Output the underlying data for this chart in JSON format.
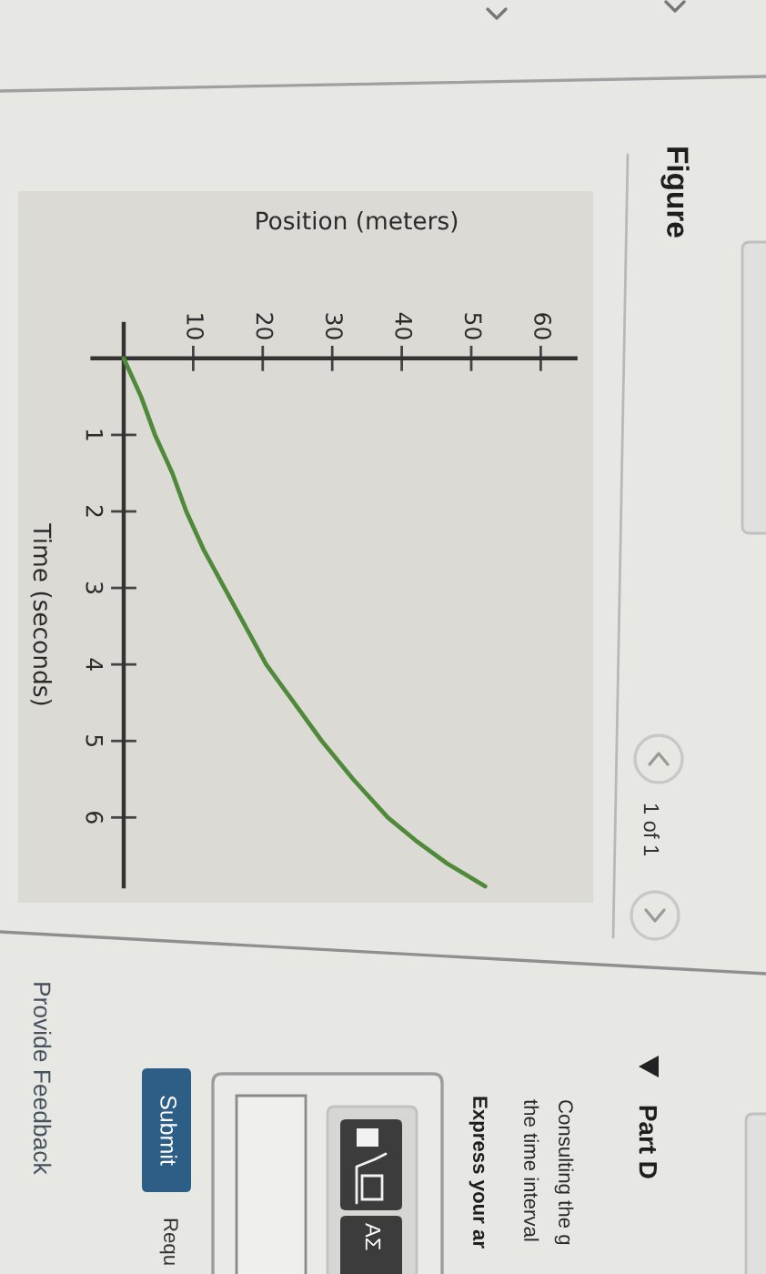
{
  "chart_data": {
    "type": "line",
    "title": "Figure",
    "xlabel": "Position (meters)",
    "ylabel": "Time (seconds)",
    "x": [
      0,
      2.5,
      4.5,
      7,
      9,
      11.5,
      14.5,
      17.5,
      20.5,
      24.5,
      28.5,
      33,
      38,
      42,
      46.5,
      52
    ],
    "series": [
      {
        "color": "#4f8a3b",
        "values": [
          0,
          0.5,
          1,
          1.5,
          2,
          2.5,
          3,
          3.5,
          4,
          4.5,
          5,
          5.5,
          6,
          6.3,
          6.6,
          6.9
        ]
      }
    ],
    "xlim": [
      -4.5,
      65
    ],
    "xticks": [
      10,
      20,
      30,
      40,
      50,
      60
    ],
    "ylim": [
      6.9,
      -0.45
    ],
    "yticks": [
      1,
      2,
      3,
      4,
      5,
      6
    ],
    "annotations": [
      "1 of 1",
      "Part D",
      "Consulting the g",
      "the time interval",
      "Express your ar",
      "ΑΣ",
      "Submit",
      "Requ",
      "Provide Feedback"
    ]
  }
}
